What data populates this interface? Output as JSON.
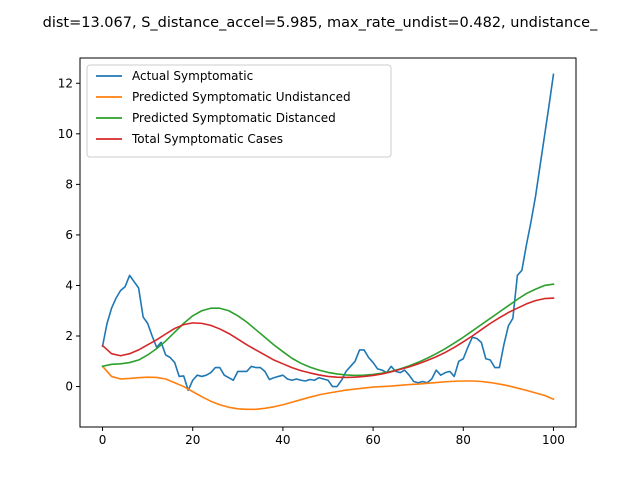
{
  "chart_data": {
    "type": "line",
    "title": "dist=13.067, S_distance_accel=5.985, max_rate_undist=0.482, undistance_",
    "xlabel": "",
    "ylabel": "",
    "xlim": [
      -5.0,
      105.0
    ],
    "ylim": [
      -1.6,
      13.0
    ],
    "xticks": [
      0,
      20,
      40,
      60,
      80,
      100
    ],
    "yticks": [
      0,
      2,
      4,
      6,
      8,
      10,
      12
    ],
    "grid": false,
    "legend_position": "upper-left",
    "series": [
      {
        "name": "Actual Symptomatic",
        "color": "#1f77b4",
        "x": [
          0,
          1,
          2,
          3,
          4,
          5,
          6,
          7,
          8,
          9,
          10,
          11,
          12,
          13,
          14,
          15,
          16,
          17,
          18,
          19,
          20,
          21,
          22,
          23,
          24,
          25,
          26,
          27,
          28,
          29,
          30,
          31,
          32,
          33,
          34,
          35,
          36,
          37,
          38,
          39,
          40,
          41,
          42,
          43,
          44,
          45,
          46,
          47,
          48,
          49,
          50,
          51,
          52,
          53,
          54,
          55,
          56,
          57,
          58,
          59,
          60,
          61,
          62,
          63,
          64,
          65,
          66,
          67,
          68,
          69,
          70,
          71,
          72,
          73,
          74,
          75,
          76,
          77,
          78,
          79,
          80,
          81,
          82,
          83,
          84,
          85,
          86,
          87,
          88,
          89,
          90,
          91,
          92,
          93,
          94,
          95,
          96,
          97,
          98,
          99,
          100
        ],
        "y": [
          1.6,
          2.5,
          3.1,
          3.5,
          3.8,
          3.95,
          4.4,
          4.15,
          3.9,
          2.75,
          2.5,
          2.0,
          1.55,
          1.75,
          1.25,
          1.15,
          0.95,
          0.4,
          0.42,
          -0.15,
          0.25,
          0.45,
          0.4,
          0.45,
          0.55,
          0.75,
          0.75,
          0.45,
          0.35,
          0.25,
          0.6,
          0.6,
          0.6,
          0.8,
          0.75,
          0.75,
          0.6,
          0.28,
          0.35,
          0.4,
          0.45,
          0.3,
          0.25,
          0.3,
          0.25,
          0.22,
          0.28,
          0.25,
          0.35,
          0.3,
          0.25,
          0.0,
          0.0,
          0.25,
          0.6,
          0.8,
          1.0,
          1.45,
          1.45,
          1.15,
          0.95,
          0.7,
          0.65,
          0.55,
          0.8,
          0.6,
          0.55,
          0.65,
          0.45,
          0.2,
          0.15,
          0.2,
          0.15,
          0.3,
          0.65,
          0.45,
          0.55,
          0.6,
          0.4,
          1.0,
          1.1,
          1.55,
          1.95,
          1.9,
          1.75,
          1.1,
          1.05,
          0.75,
          0.75,
          1.65,
          2.4,
          2.7,
          4.4,
          4.6,
          5.6,
          6.5,
          7.5,
          8.7,
          9.9,
          11.1,
          12.35
        ]
      },
      {
        "name": "Predicted Symptomatic Undistanced",
        "color": "#ff7f0e",
        "x": [
          0,
          2,
          4,
          6,
          8,
          10,
          12,
          14,
          16,
          18,
          20,
          22,
          24,
          26,
          28,
          30,
          32,
          34,
          36,
          38,
          40,
          42,
          44,
          46,
          48,
          50,
          52,
          54,
          56,
          58,
          60,
          62,
          64,
          66,
          68,
          70,
          72,
          74,
          76,
          78,
          80,
          82,
          84,
          86,
          88,
          90,
          92,
          94,
          96,
          98,
          100
        ],
        "y": [
          0.8,
          0.4,
          0.3,
          0.32,
          0.35,
          0.37,
          0.36,
          0.3,
          0.15,
          0.0,
          -0.2,
          -0.4,
          -0.58,
          -0.72,
          -0.82,
          -0.88,
          -0.9,
          -0.9,
          -0.86,
          -0.8,
          -0.72,
          -0.62,
          -0.52,
          -0.42,
          -0.33,
          -0.26,
          -0.2,
          -0.14,
          -0.1,
          -0.06,
          -0.02,
          0.0,
          0.02,
          0.05,
          0.08,
          0.1,
          0.13,
          0.16,
          0.19,
          0.21,
          0.22,
          0.22,
          0.2,
          0.16,
          0.1,
          0.03,
          -0.06,
          -0.15,
          -0.25,
          -0.35,
          -0.5
        ]
      },
      {
        "name": "Predicted Symptomatic Distanced",
        "color": "#2ca02c",
        "x": [
          0,
          2,
          4,
          6,
          8,
          10,
          12,
          14,
          16,
          18,
          20,
          22,
          24,
          26,
          28,
          30,
          32,
          34,
          36,
          38,
          40,
          42,
          44,
          46,
          48,
          50,
          52,
          54,
          56,
          58,
          60,
          62,
          64,
          66,
          68,
          70,
          72,
          74,
          76,
          78,
          80,
          82,
          84,
          86,
          88,
          90,
          92,
          94,
          96,
          98,
          100
        ],
        "y": [
          0.8,
          0.88,
          0.9,
          0.95,
          1.05,
          1.25,
          1.5,
          1.8,
          2.15,
          2.5,
          2.8,
          3.0,
          3.1,
          3.1,
          3.0,
          2.8,
          2.55,
          2.25,
          1.95,
          1.65,
          1.38,
          1.12,
          0.92,
          0.77,
          0.65,
          0.56,
          0.5,
          0.46,
          0.44,
          0.45,
          0.48,
          0.53,
          0.6,
          0.7,
          0.82,
          0.96,
          1.12,
          1.3,
          1.5,
          1.72,
          1.95,
          2.2,
          2.45,
          2.7,
          2.95,
          3.2,
          3.45,
          3.68,
          3.85,
          4.0,
          4.05
        ]
      },
      {
        "name": "Total Symptomatic Cases",
        "color": "#d62728",
        "x": [
          0,
          2,
          4,
          6,
          8,
          10,
          12,
          14,
          16,
          18,
          20,
          22,
          24,
          26,
          28,
          30,
          32,
          34,
          36,
          38,
          40,
          42,
          44,
          46,
          48,
          50,
          52,
          54,
          56,
          58,
          60,
          62,
          64,
          66,
          68,
          70,
          72,
          74,
          76,
          78,
          80,
          82,
          84,
          86,
          88,
          90,
          92,
          94,
          96,
          98,
          100
        ],
        "y": [
          1.62,
          1.3,
          1.22,
          1.3,
          1.45,
          1.65,
          1.85,
          2.08,
          2.3,
          2.45,
          2.52,
          2.5,
          2.42,
          2.28,
          2.1,
          1.88,
          1.65,
          1.45,
          1.25,
          1.05,
          0.9,
          0.75,
          0.63,
          0.54,
          0.46,
          0.4,
          0.37,
          0.36,
          0.37,
          0.4,
          0.44,
          0.5,
          0.58,
          0.68,
          0.78,
          0.9,
          1.03,
          1.18,
          1.35,
          1.55,
          1.77,
          2.0,
          2.25,
          2.5,
          2.72,
          2.93,
          3.1,
          3.27,
          3.4,
          3.48,
          3.5
        ]
      }
    ]
  }
}
